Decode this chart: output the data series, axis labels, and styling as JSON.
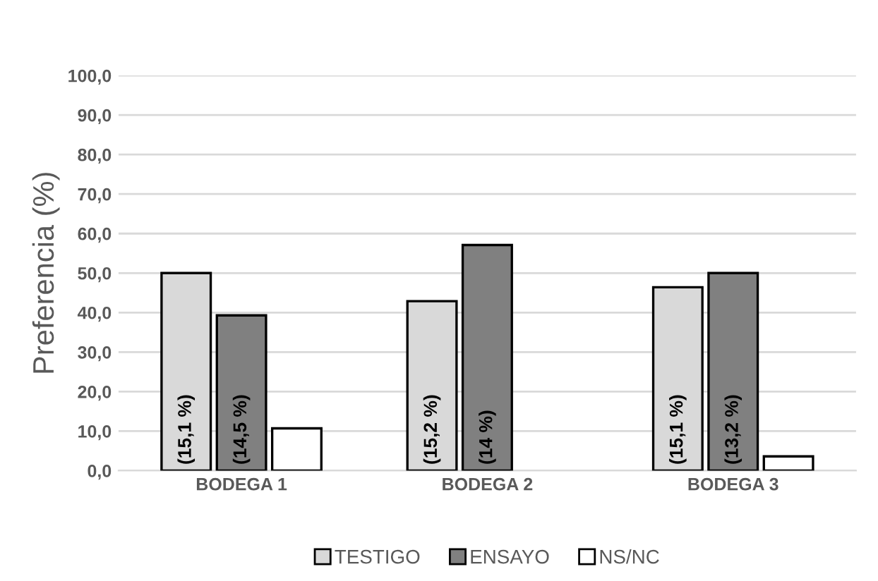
{
  "chart_data": {
    "type": "bar",
    "ylabel": "Preferencia (%)",
    "categories": [
      "BODEGA 1",
      "BODEGA 2",
      "BODEGA 3"
    ],
    "series": [
      {
        "name": "TESTIGO",
        "color": "#d9d9d9",
        "values": [
          50.0,
          42.9,
          46.4
        ]
      },
      {
        "name": "ENSAYO",
        "color": "#808080",
        "values": [
          39.3,
          57.1,
          50.0
        ]
      },
      {
        "name": "NS/NC",
        "color": "#ffffff",
        "values": [
          10.7,
          null,
          3.6
        ]
      }
    ],
    "ylim": [
      0,
      100
    ],
    "yticks": [
      {
        "value": 0,
        "label": "0,0"
      },
      {
        "value": 10,
        "label": "10,0"
      },
      {
        "value": 20,
        "label": "20,0"
      },
      {
        "value": 30,
        "label": "30,0"
      },
      {
        "value": 40,
        "label": "40,0"
      },
      {
        "value": 50,
        "label": "50,0"
      },
      {
        "value": 60,
        "label": "60,0"
      },
      {
        "value": 70,
        "label": "70,0"
      },
      {
        "value": 80,
        "label": "80,0"
      },
      {
        "value": 90,
        "label": "90,0"
      },
      {
        "value": 100,
        "label": "100,0"
      }
    ],
    "grid": "y",
    "legend": "bottom",
    "annotations": [
      "(15,1 %)",
      "(14,5 %)",
      "(15,2 %)",
      "(14 %)",
      "(15,1 %)",
      "(13,2 %)"
    ]
  }
}
